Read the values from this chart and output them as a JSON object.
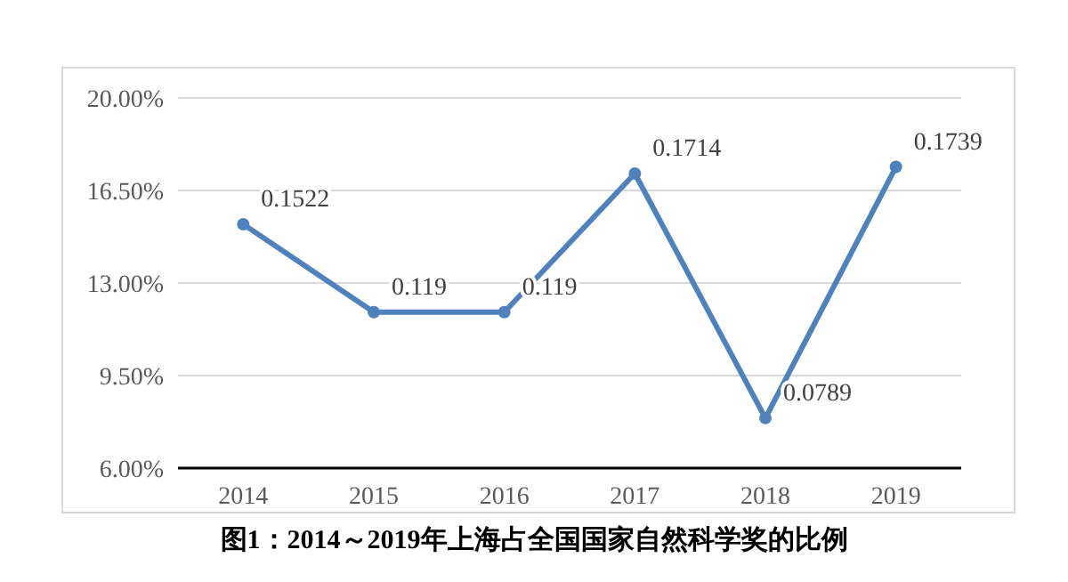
{
  "chart_data": {
    "type": "line",
    "title": "图1：2014～2019年上海占全国国家自然科学奖的比例",
    "categories": [
      "2014",
      "2015",
      "2016",
      "2017",
      "2018",
      "2019"
    ],
    "series": [
      {
        "color": "#4f81bd",
        "values": [
          0.1522,
          0.119,
          0.119,
          0.1714,
          0.0789,
          0.1739
        ]
      }
    ],
    "data_labels": true,
    "ylim": [
      0.06,
      0.2
    ],
    "yticks": [
      {
        "value": 0.06,
        "label": "6.00%"
      },
      {
        "value": 0.095,
        "label": "9.50%"
      },
      {
        "value": 0.13,
        "label": "13.00%"
      },
      {
        "value": 0.165,
        "label": "16.50%"
      },
      {
        "value": 0.2,
        "label": "20.00%"
      }
    ],
    "grid": "y",
    "marker": "circle",
    "line_style": "solid"
  }
}
